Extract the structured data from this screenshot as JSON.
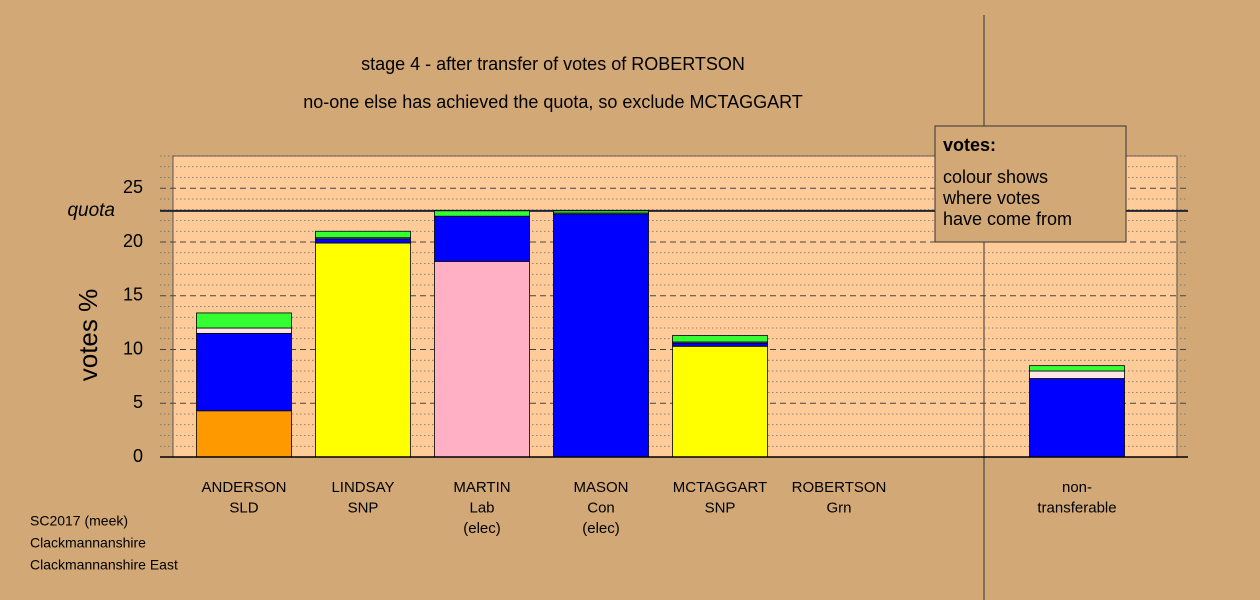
{
  "chart_data": {
    "type": "stacked_bar",
    "title": "stage 4 - after transfer of votes of ROBERTSON",
    "subtitle": "no-one else has achieved the quota, so exclude MCTAGGART",
    "y_label": "votes %",
    "categories": [
      [
        "ANDERSON",
        "SLD"
      ],
      [
        "LINDSAY",
        "SNP"
      ],
      [
        "MARTIN",
        "Lab",
        "(elec)"
      ],
      [
        "MASON",
        "Con",
        "(elec)"
      ],
      [
        "MCTAGGART",
        "SNP"
      ],
      [
        "ROBERTSON",
        "Grn"
      ],
      null,
      [
        "non-",
        "transferable"
      ]
    ],
    "series": [
      {
        "color": "#ff9900",
        "values": [
          4.3,
          0,
          0,
          0,
          0,
          0,
          null,
          0
        ]
      },
      {
        "color": "#ffff00",
        "values": [
          0,
          19.9,
          0,
          0,
          10.3,
          0,
          null,
          0
        ]
      },
      {
        "color": "#ffb0c4",
        "values": [
          0,
          0,
          18.2,
          0,
          0,
          0,
          null,
          0
        ]
      },
      {
        "color": "#0000ff",
        "values": [
          7.2,
          0.4,
          4.2,
          22.6,
          0.3,
          0,
          null,
          7.3
        ]
      },
      {
        "color": "#ffe6e6",
        "values": [
          0.5,
          0.1,
          0,
          0.1,
          0.1,
          0,
          null,
          0.7
        ]
      },
      {
        "color": "#33ff33",
        "values": [
          1.4,
          0.6,
          0.5,
          0.2,
          0.6,
          0,
          null,
          0.5
        ]
      }
    ],
    "ylim": [
      0,
      28
    ],
    "yticks": [
      0,
      5,
      10,
      15,
      20,
      25
    ],
    "minor_grid_step": 1,
    "grid": true,
    "quota": {
      "value": 22.9,
      "label": "quota"
    },
    "note": {
      "heading": "votes:",
      "lines": [
        "colour shows",
        "where votes",
        "have come from"
      ]
    },
    "footer": [
      "SC2017 (meek)",
      "Clackmannanshire",
      "Clackmannanshire East"
    ]
  }
}
